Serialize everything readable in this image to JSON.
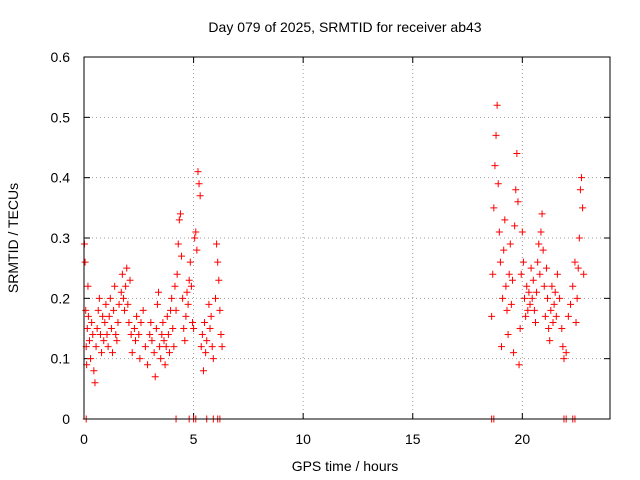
{
  "chart_data": {
    "type": "scatter",
    "title": "Day 079 of 2025, SRMTID for receiver ab43",
    "xlabel": "GPS time / hours",
    "ylabel": "SRMTID / TECUs",
    "xlim": [
      0,
      24
    ],
    "ylim": [
      0,
      0.6
    ],
    "xticks": [
      0,
      5,
      10,
      15,
      20
    ],
    "xtick_labels": [
      "0",
      "5",
      "10",
      "15",
      "20"
    ],
    "yticks": [
      0,
      0.1,
      0.2,
      0.3,
      0.4,
      0.5,
      0.6
    ],
    "ytick_labels": [
      "0",
      "0.1",
      "0.2",
      "0.3",
      "0.4",
      "0.5",
      "0.6"
    ],
    "grid": true,
    "marker": "+",
    "color": "#ff0000",
    "series": [
      {
        "name": "SRMTID",
        "points": [
          [
            0.02,
            0.29
          ],
          [
            0.05,
            0.26
          ],
          [
            0.08,
            0.18
          ],
          [
            0.1,
            0.12
          ],
          [
            0.12,
            0.09
          ],
          [
            0.15,
            0.15
          ],
          [
            0.18,
            0.22
          ],
          [
            0.2,
            0.17
          ],
          [
            0.25,
            0.13
          ],
          [
            0.3,
            0.1
          ],
          [
            0.35,
            0.16
          ],
          [
            0.4,
            0.14
          ],
          [
            0.45,
            0.08
          ],
          [
            0.5,
            0.06
          ],
          [
            0.55,
            0.12
          ],
          [
            0.6,
            0.15
          ],
          [
            0.65,
            0.18
          ],
          [
            0.7,
            0.2
          ],
          [
            0.75,
            0.14
          ],
          [
            0.8,
            0.11
          ],
          [
            0.85,
            0.17
          ],
          [
            0.9,
            0.13
          ],
          [
            0.95,
            0.16
          ],
          [
            1.0,
            0.19
          ],
          [
            1.05,
            0.14
          ],
          [
            1.1,
            0.12
          ],
          [
            1.15,
            0.17
          ],
          [
            1.2,
            0.2
          ],
          [
            1.25,
            0.15
          ],
          [
            1.3,
            0.11
          ],
          [
            1.35,
            0.18
          ],
          [
            1.4,
            0.22
          ],
          [
            1.45,
            0.14
          ],
          [
            1.5,
            0.13
          ],
          [
            1.55,
            0.16
          ],
          [
            1.6,
            0.19
          ],
          [
            1.7,
            0.21
          ],
          [
            1.75,
            0.24
          ],
          [
            1.8,
            0.2
          ],
          [
            1.85,
            0.18
          ],
          [
            1.9,
            0.22
          ],
          [
            1.95,
            0.25
          ],
          [
            2.0,
            0.19
          ],
          [
            2.05,
            0.16
          ],
          [
            2.1,
            0.23
          ],
          [
            2.15,
            0.14
          ],
          [
            2.2,
            0.11
          ],
          [
            2.3,
            0.15
          ],
          [
            2.35,
            0.13
          ],
          [
            2.4,
            0.17
          ],
          [
            2.5,
            0.14
          ],
          [
            2.55,
            0.1
          ],
          [
            2.6,
            0.16
          ],
          [
            2.7,
            0.18
          ],
          [
            2.8,
            0.12
          ],
          [
            2.9,
            0.09
          ],
          [
            3.0,
            0.14
          ],
          [
            3.05,
            0.16
          ],
          [
            3.1,
            0.13
          ],
          [
            3.2,
            0.11
          ],
          [
            3.25,
            0.07
          ],
          [
            3.3,
            0.15
          ],
          [
            3.35,
            0.19
          ],
          [
            3.4,
            0.21
          ],
          [
            3.45,
            0.12
          ],
          [
            3.5,
            0.1
          ],
          [
            3.55,
            0.14
          ],
          [
            3.6,
            0.16
          ],
          [
            3.65,
            0.13
          ],
          [
            3.7,
            0.09
          ],
          [
            3.75,
            0.12
          ],
          [
            3.8,
            0.17
          ],
          [
            3.85,
            0.14
          ],
          [
            3.9,
            0.11
          ],
          [
            3.95,
            0.18
          ],
          [
            4.0,
            0.2
          ],
          [
            4.05,
            0.15
          ],
          [
            4.1,
            0.12
          ],
          [
            4.15,
            0.22
          ],
          [
            4.2,
            0.18
          ],
          [
            4.25,
            0.24
          ],
          [
            4.3,
            0.29
          ],
          [
            4.35,
            0.33
          ],
          [
            4.4,
            0.34
          ],
          [
            4.45,
            0.27
          ],
          [
            4.5,
            0.2
          ],
          [
            4.55,
            0.15
          ],
          [
            4.6,
            0.13
          ],
          [
            4.65,
            0.17
          ],
          [
            4.7,
            0.21
          ],
          [
            4.75,
            0.19
          ],
          [
            4.8,
            0.23
          ],
          [
            4.85,
            0.26
          ],
          [
            4.9,
            0.22
          ],
          [
            4.95,
            0.16
          ],
          [
            5.0,
            0.15
          ],
          [
            5.05,
            0.3
          ],
          [
            5.1,
            0.31
          ],
          [
            5.15,
            0.28
          ],
          [
            5.2,
            0.41
          ],
          [
            5.25,
            0.39
          ],
          [
            5.3,
            0.37
          ],
          [
            5.35,
            0.12
          ],
          [
            5.4,
            0.14
          ],
          [
            5.45,
            0.08
          ],
          [
            5.5,
            0.16
          ],
          [
            5.55,
            0.11
          ],
          [
            5.6,
            0.13
          ],
          [
            5.7,
            0.19
          ],
          [
            5.75,
            0.15
          ],
          [
            5.8,
            0.17
          ],
          [
            5.85,
            0.12
          ],
          [
            5.9,
            0.1
          ],
          [
            6.0,
            0.2
          ],
          [
            6.05,
            0.29
          ],
          [
            6.1,
            0.26
          ],
          [
            6.15,
            0.23
          ],
          [
            6.2,
            0.18
          ],
          [
            6.25,
            0.14
          ],
          [
            6.3,
            0.12
          ],
          [
            0.1,
            0.0
          ],
          [
            4.2,
            0.0
          ],
          [
            4.8,
            0.0
          ],
          [
            5.0,
            0.0
          ],
          [
            5.1,
            0.0
          ],
          [
            5.6,
            0.0
          ],
          [
            5.9,
            0.0
          ],
          [
            6.1,
            0.0
          ],
          [
            6.2,
            0.0
          ],
          [
            18.6,
            0.17
          ],
          [
            18.65,
            0.24
          ],
          [
            18.7,
            0.35
          ],
          [
            18.75,
            0.42
          ],
          [
            18.8,
            0.47
          ],
          [
            18.85,
            0.52
          ],
          [
            18.9,
            0.39
          ],
          [
            18.95,
            0.31
          ],
          [
            19.0,
            0.26
          ],
          [
            19.05,
            0.12
          ],
          [
            19.1,
            0.2
          ],
          [
            19.15,
            0.28
          ],
          [
            19.2,
            0.33
          ],
          [
            19.25,
            0.22
          ],
          [
            19.3,
            0.18
          ],
          [
            19.35,
            0.14
          ],
          [
            19.4,
            0.24
          ],
          [
            19.45,
            0.29
          ],
          [
            19.5,
            0.19
          ],
          [
            19.55,
            0.23
          ],
          [
            19.6,
            0.11
          ],
          [
            19.65,
            0.32
          ],
          [
            19.7,
            0.38
          ],
          [
            19.75,
            0.44
          ],
          [
            19.8,
            0.36
          ],
          [
            19.85,
            0.09
          ],
          [
            19.9,
            0.15
          ],
          [
            19.95,
            0.24
          ],
          [
            20.0,
            0.31
          ],
          [
            20.05,
            0.26
          ],
          [
            20.1,
            0.2
          ],
          [
            20.15,
            0.17
          ],
          [
            20.2,
            0.22
          ],
          [
            20.25,
            0.18
          ],
          [
            20.3,
            0.21
          ],
          [
            20.35,
            0.19
          ],
          [
            20.4,
            0.25
          ],
          [
            20.45,
            0.2
          ],
          [
            20.5,
            0.23
          ],
          [
            20.55,
            0.18
          ],
          [
            20.6,
            0.16
          ],
          [
            20.65,
            0.21
          ],
          [
            20.7,
            0.26
          ],
          [
            20.75,
            0.29
          ],
          [
            20.8,
            0.24
          ],
          [
            20.85,
            0.31
          ],
          [
            20.9,
            0.34
          ],
          [
            20.95,
            0.28
          ],
          [
            21.0,
            0.22
          ],
          [
            21.05,
            0.17
          ],
          [
            21.1,
            0.25
          ],
          [
            21.15,
            0.2
          ],
          [
            21.2,
            0.15
          ],
          [
            21.25,
            0.13
          ],
          [
            21.3,
            0.18
          ],
          [
            21.35,
            0.22
          ],
          [
            21.4,
            0.16
          ],
          [
            21.45,
            0.19
          ],
          [
            21.5,
            0.21
          ],
          [
            21.55,
            0.17
          ],
          [
            21.6,
            0.24
          ],
          [
            21.7,
            0.2
          ],
          [
            21.8,
            0.15
          ],
          [
            21.85,
            0.12
          ],
          [
            21.9,
            0.1
          ],
          [
            22.0,
            0.11
          ],
          [
            22.1,
            0.17
          ],
          [
            22.2,
            0.19
          ],
          [
            22.3,
            0.22
          ],
          [
            22.4,
            0.26
          ],
          [
            22.45,
            0.16
          ],
          [
            22.5,
            0.2
          ],
          [
            22.55,
            0.25
          ],
          [
            22.6,
            0.3
          ],
          [
            22.65,
            0.38
          ],
          [
            22.7,
            0.4
          ],
          [
            22.75,
            0.35
          ],
          [
            22.8,
            0.24
          ],
          [
            18.6,
            0.0
          ],
          [
            18.7,
            0.0
          ],
          [
            21.9,
            0.0
          ],
          [
            22.0,
            0.0
          ],
          [
            22.3,
            0.0
          ],
          [
            22.4,
            0.0
          ]
        ]
      }
    ]
  }
}
